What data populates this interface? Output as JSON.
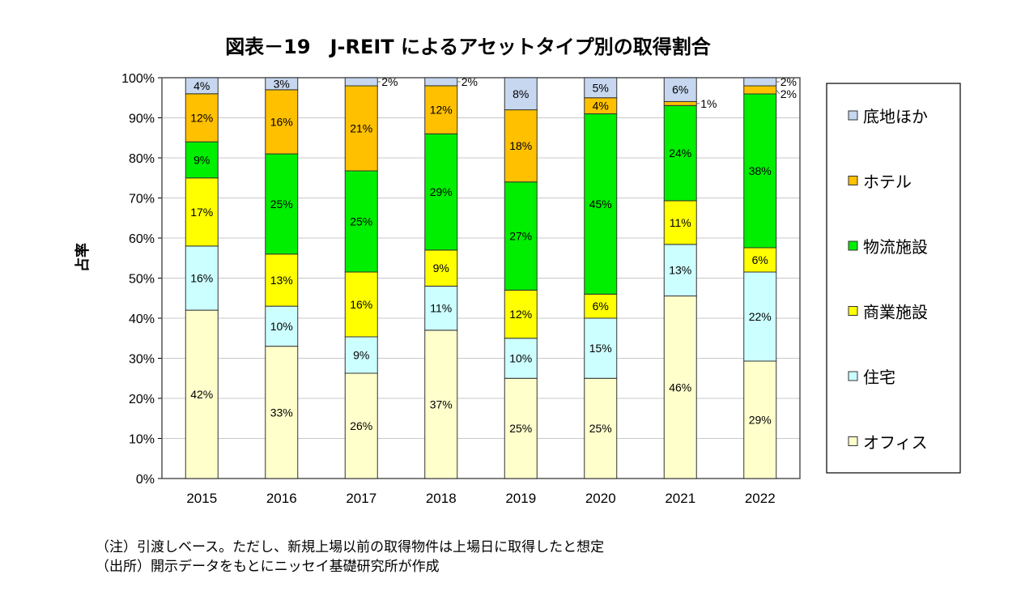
{
  "chart_data": {
    "type": "bar",
    "stacked": true,
    "percent": true,
    "title": "図表－19　J-REIT によるアセットタイプ別の取得割合",
    "ylabel": "占率",
    "xlabel": "",
    "ylim": [
      0,
      100
    ],
    "yticks": [
      "0%",
      "10%",
      "20%",
      "30%",
      "40%",
      "50%",
      "60%",
      "70%",
      "80%",
      "90%",
      "100%"
    ],
    "grid": true,
    "legend_position": "right",
    "categories": [
      "2015",
      "2016",
      "2017",
      "2018",
      "2019",
      "2020",
      "2021",
      "2022"
    ],
    "series": [
      {
        "name": "オフィス",
        "color": "#ffffcc",
        "values": [
          42,
          33,
          26,
          37,
          25,
          25,
          46,
          29
        ]
      },
      {
        "name": "住宅",
        "color": "#ccffff",
        "values": [
          16,
          10,
          9,
          11,
          10,
          15,
          13,
          22
        ]
      },
      {
        "name": "商業施設",
        "color": "#ffff00",
        "values": [
          17,
          13,
          16,
          9,
          12,
          6,
          11,
          6
        ]
      },
      {
        "name": "物流施設",
        "color": "#00ee00",
        "values": [
          9,
          25,
          25,
          29,
          27,
          45,
          24,
          38
        ]
      },
      {
        "name": "ホテル",
        "color": "#ffc000",
        "values": [
          12,
          16,
          21,
          12,
          18,
          4,
          1,
          2
        ]
      },
      {
        "name": "底地ほか",
        "color": "#c6d7ef",
        "values": [
          4,
          3,
          2,
          2,
          8,
          5,
          6,
          2
        ]
      }
    ]
  },
  "notes": [
    "（注）引渡しベース。ただし、新規上場以前の取得物件は上場日に取得したと想定",
    "（出所）開示データをもとにニッセイ基礎研究所が作成"
  ]
}
